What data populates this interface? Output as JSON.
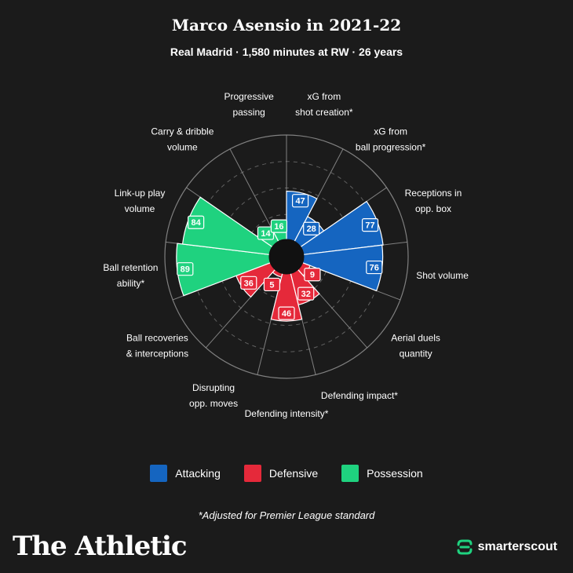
{
  "header": {
    "title": "Marco Asensio in 2021-22",
    "subtitle": "Real Madrid · 1,580 minutes at RW · 26 years"
  },
  "colors": {
    "background": "#1b1b1b",
    "attacking": "#1565c0",
    "defensive": "#e5293a",
    "possession": "#1fd27f",
    "grid": "#9a9a9a"
  },
  "chart_data": {
    "type": "polar-bar",
    "rmax": 100,
    "categories": [
      {
        "label": [
          "xG from",
          "shot creation*"
        ],
        "value": 47,
        "group": "Attacking"
      },
      {
        "label": [
          "xG from",
          "ball progression*"
        ],
        "value": 28,
        "group": "Attacking"
      },
      {
        "label": [
          "Receptions in",
          "opp. box"
        ],
        "value": 77,
        "group": "Attacking"
      },
      {
        "label": [
          "Shot volume"
        ],
        "value": 76,
        "group": "Attacking"
      },
      {
        "label": [
          "Aerial duels",
          "quantity"
        ],
        "value": 9,
        "group": "Defensive"
      },
      {
        "label": [
          "Defending impact*"
        ],
        "value": 32,
        "group": "Defensive"
      },
      {
        "label": [
          "Defending intensity*"
        ],
        "value": 46,
        "group": "Defensive"
      },
      {
        "label": [
          "Disrupting",
          "opp. moves"
        ],
        "value": 5,
        "group": "Defensive"
      },
      {
        "label": [
          "Ball recoveries",
          "& interceptions"
        ],
        "value": 36,
        "group": "Defensive"
      },
      {
        "label": [
          "Ball retention",
          "ability*"
        ],
        "value": 89,
        "group": "Possession"
      },
      {
        "label": [
          "Link-up play",
          "volume"
        ],
        "value": 84,
        "group": "Possession"
      },
      {
        "label": [
          "Carry & dribble",
          "volume"
        ],
        "value": 14,
        "group": "Possession"
      },
      {
        "label": [
          "Progressive",
          "passing"
        ],
        "value": 16,
        "group": "Possession"
      }
    ]
  },
  "legend": {
    "items": [
      {
        "label": "Attacking",
        "color": "#1565c0"
      },
      {
        "label": "Defensive",
        "color": "#e5293a"
      },
      {
        "label": "Possession",
        "color": "#1fd27f"
      }
    ]
  },
  "footnote": "*Adjusted for Premier League standard",
  "branding": {
    "left": "The Athletic",
    "right": "smarterscout"
  }
}
